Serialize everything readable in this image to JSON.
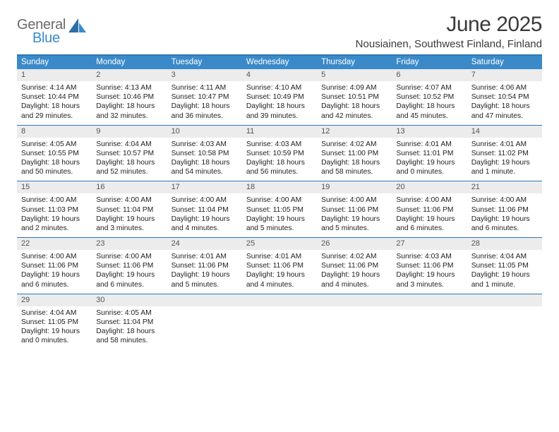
{
  "logo": {
    "text1": "General",
    "text2": "Blue"
  },
  "title": "June 2025",
  "location": "Nousiainen, Southwest Finland, Finland",
  "colors": {
    "header_bar": "#3a8ac9",
    "rule": "#2f77b6",
    "daynum_bg": "#ececec",
    "text": "#222222",
    "logo_gray": "#6a6a6a",
    "logo_blue": "#3a8ac9"
  },
  "weekdays": [
    "Sunday",
    "Monday",
    "Tuesday",
    "Wednesday",
    "Thursday",
    "Friday",
    "Saturday"
  ],
  "weeks": [
    [
      {
        "n": "1",
        "sunrise": "4:14 AM",
        "sunset": "10:44 PM",
        "daylight": "18 hours and 29 minutes."
      },
      {
        "n": "2",
        "sunrise": "4:13 AM",
        "sunset": "10:46 PM",
        "daylight": "18 hours and 32 minutes."
      },
      {
        "n": "3",
        "sunrise": "4:11 AM",
        "sunset": "10:47 PM",
        "daylight": "18 hours and 36 minutes."
      },
      {
        "n": "4",
        "sunrise": "4:10 AM",
        "sunset": "10:49 PM",
        "daylight": "18 hours and 39 minutes."
      },
      {
        "n": "5",
        "sunrise": "4:09 AM",
        "sunset": "10:51 PM",
        "daylight": "18 hours and 42 minutes."
      },
      {
        "n": "6",
        "sunrise": "4:07 AM",
        "sunset": "10:52 PM",
        "daylight": "18 hours and 45 minutes."
      },
      {
        "n": "7",
        "sunrise": "4:06 AM",
        "sunset": "10:54 PM",
        "daylight": "18 hours and 47 minutes."
      }
    ],
    [
      {
        "n": "8",
        "sunrise": "4:05 AM",
        "sunset": "10:55 PM",
        "daylight": "18 hours and 50 minutes."
      },
      {
        "n": "9",
        "sunrise": "4:04 AM",
        "sunset": "10:57 PM",
        "daylight": "18 hours and 52 minutes."
      },
      {
        "n": "10",
        "sunrise": "4:03 AM",
        "sunset": "10:58 PM",
        "daylight": "18 hours and 54 minutes."
      },
      {
        "n": "11",
        "sunrise": "4:03 AM",
        "sunset": "10:59 PM",
        "daylight": "18 hours and 56 minutes."
      },
      {
        "n": "12",
        "sunrise": "4:02 AM",
        "sunset": "11:00 PM",
        "daylight": "18 hours and 58 minutes."
      },
      {
        "n": "13",
        "sunrise": "4:01 AM",
        "sunset": "11:01 PM",
        "daylight": "19 hours and 0 minutes."
      },
      {
        "n": "14",
        "sunrise": "4:01 AM",
        "sunset": "11:02 PM",
        "daylight": "19 hours and 1 minute."
      }
    ],
    [
      {
        "n": "15",
        "sunrise": "4:00 AM",
        "sunset": "11:03 PM",
        "daylight": "19 hours and 2 minutes."
      },
      {
        "n": "16",
        "sunrise": "4:00 AM",
        "sunset": "11:04 PM",
        "daylight": "19 hours and 3 minutes."
      },
      {
        "n": "17",
        "sunrise": "4:00 AM",
        "sunset": "11:04 PM",
        "daylight": "19 hours and 4 minutes."
      },
      {
        "n": "18",
        "sunrise": "4:00 AM",
        "sunset": "11:05 PM",
        "daylight": "19 hours and 5 minutes."
      },
      {
        "n": "19",
        "sunrise": "4:00 AM",
        "sunset": "11:06 PM",
        "daylight": "19 hours and 5 minutes."
      },
      {
        "n": "20",
        "sunrise": "4:00 AM",
        "sunset": "11:06 PM",
        "daylight": "19 hours and 6 minutes."
      },
      {
        "n": "21",
        "sunrise": "4:00 AM",
        "sunset": "11:06 PM",
        "daylight": "19 hours and 6 minutes."
      }
    ],
    [
      {
        "n": "22",
        "sunrise": "4:00 AM",
        "sunset": "11:06 PM",
        "daylight": "19 hours and 6 minutes."
      },
      {
        "n": "23",
        "sunrise": "4:00 AM",
        "sunset": "11:06 PM",
        "daylight": "19 hours and 6 minutes."
      },
      {
        "n": "24",
        "sunrise": "4:01 AM",
        "sunset": "11:06 PM",
        "daylight": "19 hours and 5 minutes."
      },
      {
        "n": "25",
        "sunrise": "4:01 AM",
        "sunset": "11:06 PM",
        "daylight": "19 hours and 4 minutes."
      },
      {
        "n": "26",
        "sunrise": "4:02 AM",
        "sunset": "11:06 PM",
        "daylight": "19 hours and 4 minutes."
      },
      {
        "n": "27",
        "sunrise": "4:03 AM",
        "sunset": "11:06 PM",
        "daylight": "19 hours and 3 minutes."
      },
      {
        "n": "28",
        "sunrise": "4:04 AM",
        "sunset": "11:05 PM",
        "daylight": "19 hours and 1 minute."
      }
    ],
    [
      {
        "n": "29",
        "sunrise": "4:04 AM",
        "sunset": "11:05 PM",
        "daylight": "19 hours and 0 minutes."
      },
      {
        "n": "30",
        "sunrise": "4:05 AM",
        "sunset": "11:04 PM",
        "daylight": "18 hours and 58 minutes."
      },
      null,
      null,
      null,
      null,
      null
    ]
  ],
  "labels": {
    "sunrise": "Sunrise:",
    "sunset": "Sunset:",
    "daylight": "Daylight:"
  }
}
